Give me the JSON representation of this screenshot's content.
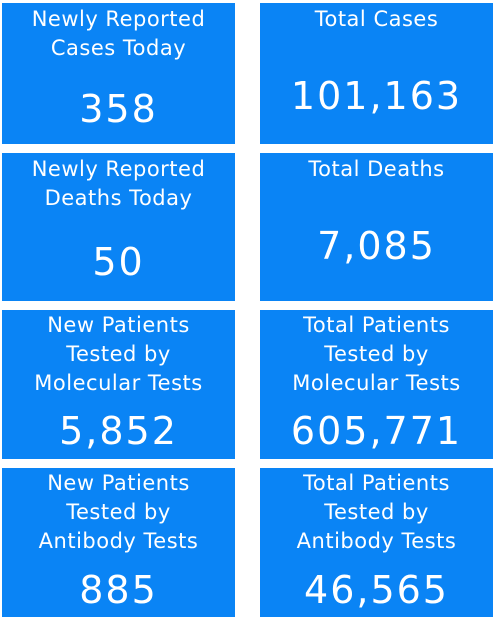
{
  "colors": {
    "tile_background": "#0a84f5",
    "text": "#ffffff"
  },
  "tiles": [
    {
      "label": "Newly Reported\nCases Today",
      "value": "358"
    },
    {
      "label": "Total Cases",
      "value": "101,163"
    },
    {
      "label": "Newly Reported\nDeaths Today",
      "value": "50"
    },
    {
      "label": "Total Deaths",
      "value": "7,085"
    },
    {
      "label": "New Patients\nTested by\nMolecular Tests",
      "value": "5,852"
    },
    {
      "label": "Total Patients\nTested by\nMolecular Tests",
      "value": "605,771"
    },
    {
      "label": "New Patients\nTested by\nAntibody Tests",
      "value": "885"
    },
    {
      "label": "Total Patients\nTested by\nAntibody Tests",
      "value": "46,565"
    }
  ]
}
